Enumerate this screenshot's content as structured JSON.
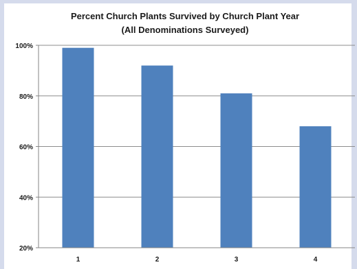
{
  "chart_data": {
    "type": "bar",
    "title": "Percent Church Plants Survived by Church Plant Year",
    "subtitle": "(All Denominations Surveyed)",
    "categories": [
      "1",
      "2",
      "3",
      "4"
    ],
    "values": [
      99,
      92,
      81,
      68
    ],
    "ylim": [
      20,
      100
    ],
    "yticks": [
      20,
      40,
      60,
      80,
      100
    ],
    "ytick_labels": [
      "20%",
      "40%",
      "60%",
      "80%",
      "100%"
    ],
    "xlabel": "",
    "ylabel": "",
    "grid": true,
    "legend": "none",
    "colors": {
      "bar": "#4f81bd",
      "gridline": "#8c8c8c",
      "axis": "#868686",
      "background": "#ffffff",
      "frame": "#d5dbec"
    }
  }
}
